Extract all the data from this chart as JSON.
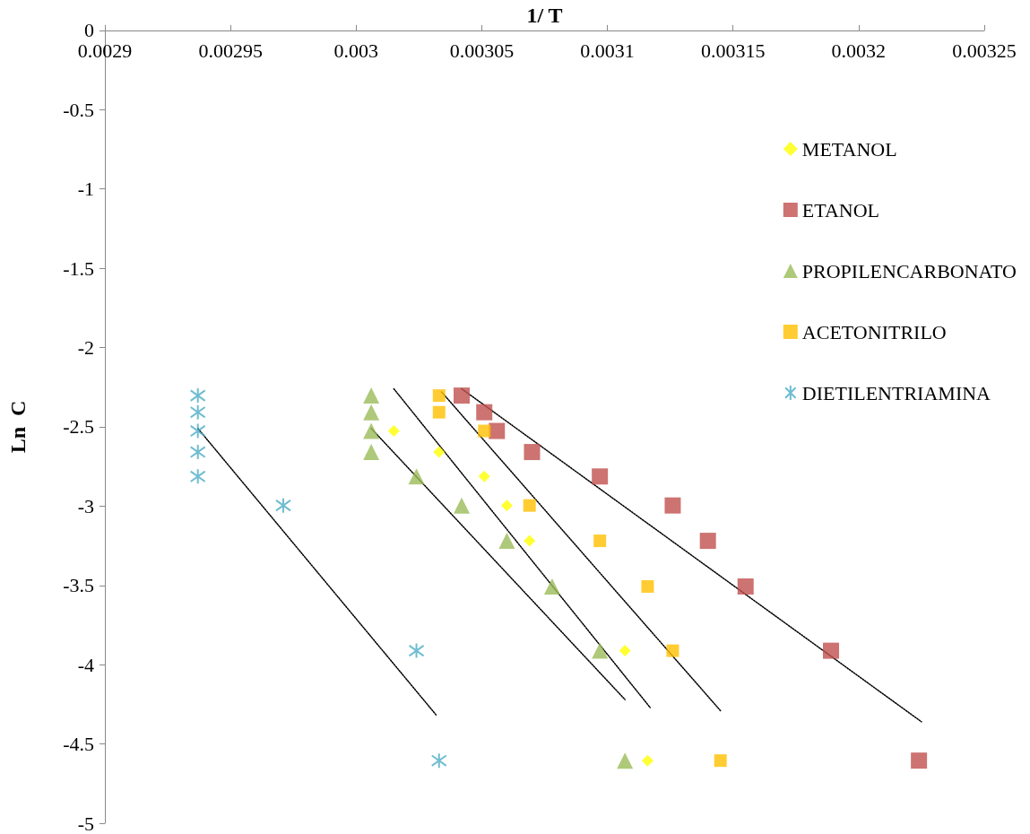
{
  "chart_data": {
    "type": "scatter",
    "xlabel": "1/ T",
    "ylabel": "Ln  C",
    "xlim": [
      0.0029,
      0.00325
    ],
    "xticks": [
      0.0029,
      0.00295,
      0.003,
      0.00305,
      0.0031,
      0.00315,
      0.0032,
      0.00325
    ],
    "ylim": [
      -5,
      0
    ],
    "yticks": [
      0,
      -0.5,
      -1,
      -1.5,
      -2,
      -2.5,
      -3,
      -3.5,
      -4,
      -4.5,
      -5
    ],
    "grid": false,
    "legend": "right",
    "series": [
      {
        "name": "METANOL",
        "color": "#ffff00",
        "marker": "diamond",
        "x": [
          0.003015,
          0.003033,
          0.003051,
          0.00306,
          0.003069,
          0.003078,
          0.003107,
          0.003116
        ],
        "values": [
          -2.526,
          -2.659,
          -2.813,
          -2.996,
          -3.219,
          null,
          -3.912,
          -4.605
        ]
      },
      {
        "name": "ETANOL",
        "color": "#c0504d",
        "marker": "square",
        "x": [
          0.003042,
          0.003051,
          0.003056,
          0.00307,
          0.003097,
          0.003126,
          0.00314,
          0.003155,
          0.003189,
          0.003224
        ],
        "values": [
          -2.303,
          -2.408,
          -2.526,
          -2.659,
          -2.813,
          -2.996,
          -3.219,
          -3.507,
          -3.912,
          -4.605
        ]
      },
      {
        "name": "PROPILENCARBONATO",
        "color": "#9bbb59",
        "marker": "triangle",
        "x": [
          0.003006,
          0.003006,
          0.003006,
          0.003006,
          0.003024,
          0.003042,
          0.00306,
          0.003078,
          0.003097,
          0.003107
        ],
        "values": [
          -2.303,
          -2.408,
          -2.526,
          -2.659,
          -2.813,
          -2.996,
          -3.219,
          -3.507,
          -3.912,
          -4.605
        ]
      },
      {
        "name": "ACETONITRILO",
        "color": "#ffc000",
        "marker": "square",
        "x": [
          0.003033,
          0.003033,
          0.003051,
          0.003069,
          0.003097,
          0.003116,
          0.003126,
          0.003145
        ],
        "values": [
          -2.303,
          -2.408,
          -2.526,
          -2.996,
          -3.219,
          -3.507,
          -3.912,
          -4.605
        ]
      },
      {
        "name": "DIETILENTRIAMINA",
        "color": "#4bacc6",
        "marker": "cross",
        "x": [
          0.002937,
          0.002937,
          0.002937,
          0.002937,
          0.002937,
          0.002971,
          0.003024,
          0.003033
        ],
        "values": [
          -2.303,
          -2.408,
          -2.526,
          -2.659,
          -2.813,
          -2.996,
          -3.912,
          -4.605
        ]
      },
      {
        "type": "line",
        "color": "#000000",
        "marker": "none",
        "line_style": "dotted",
        "x": [
          0.002937,
          0.003032
        ],
        "values": [
          -2.51,
          -4.32
        ]
      },
      {
        "type": "line",
        "color": "#000000",
        "marker": "none",
        "line_style": "dotted",
        "x": [
          0.003006,
          0.003107
        ],
        "values": [
          -2.51,
          -4.22
        ]
      },
      {
        "type": "line",
        "color": "#000000",
        "marker": "none",
        "line_style": "dotted",
        "x": [
          0.003015,
          0.003117
        ],
        "values": [
          -2.26,
          -4.27
        ]
      },
      {
        "type": "line",
        "color": "#000000",
        "marker": "none",
        "line_style": "dotted",
        "x": [
          0.003034,
          0.003145
        ],
        "values": [
          -2.28,
          -4.29
        ]
      },
      {
        "type": "line",
        "color": "#000000",
        "marker": "none",
        "line_style": "dotted",
        "x": [
          0.003042,
          0.003225
        ],
        "values": [
          -2.26,
          -4.36
        ]
      }
    ]
  }
}
